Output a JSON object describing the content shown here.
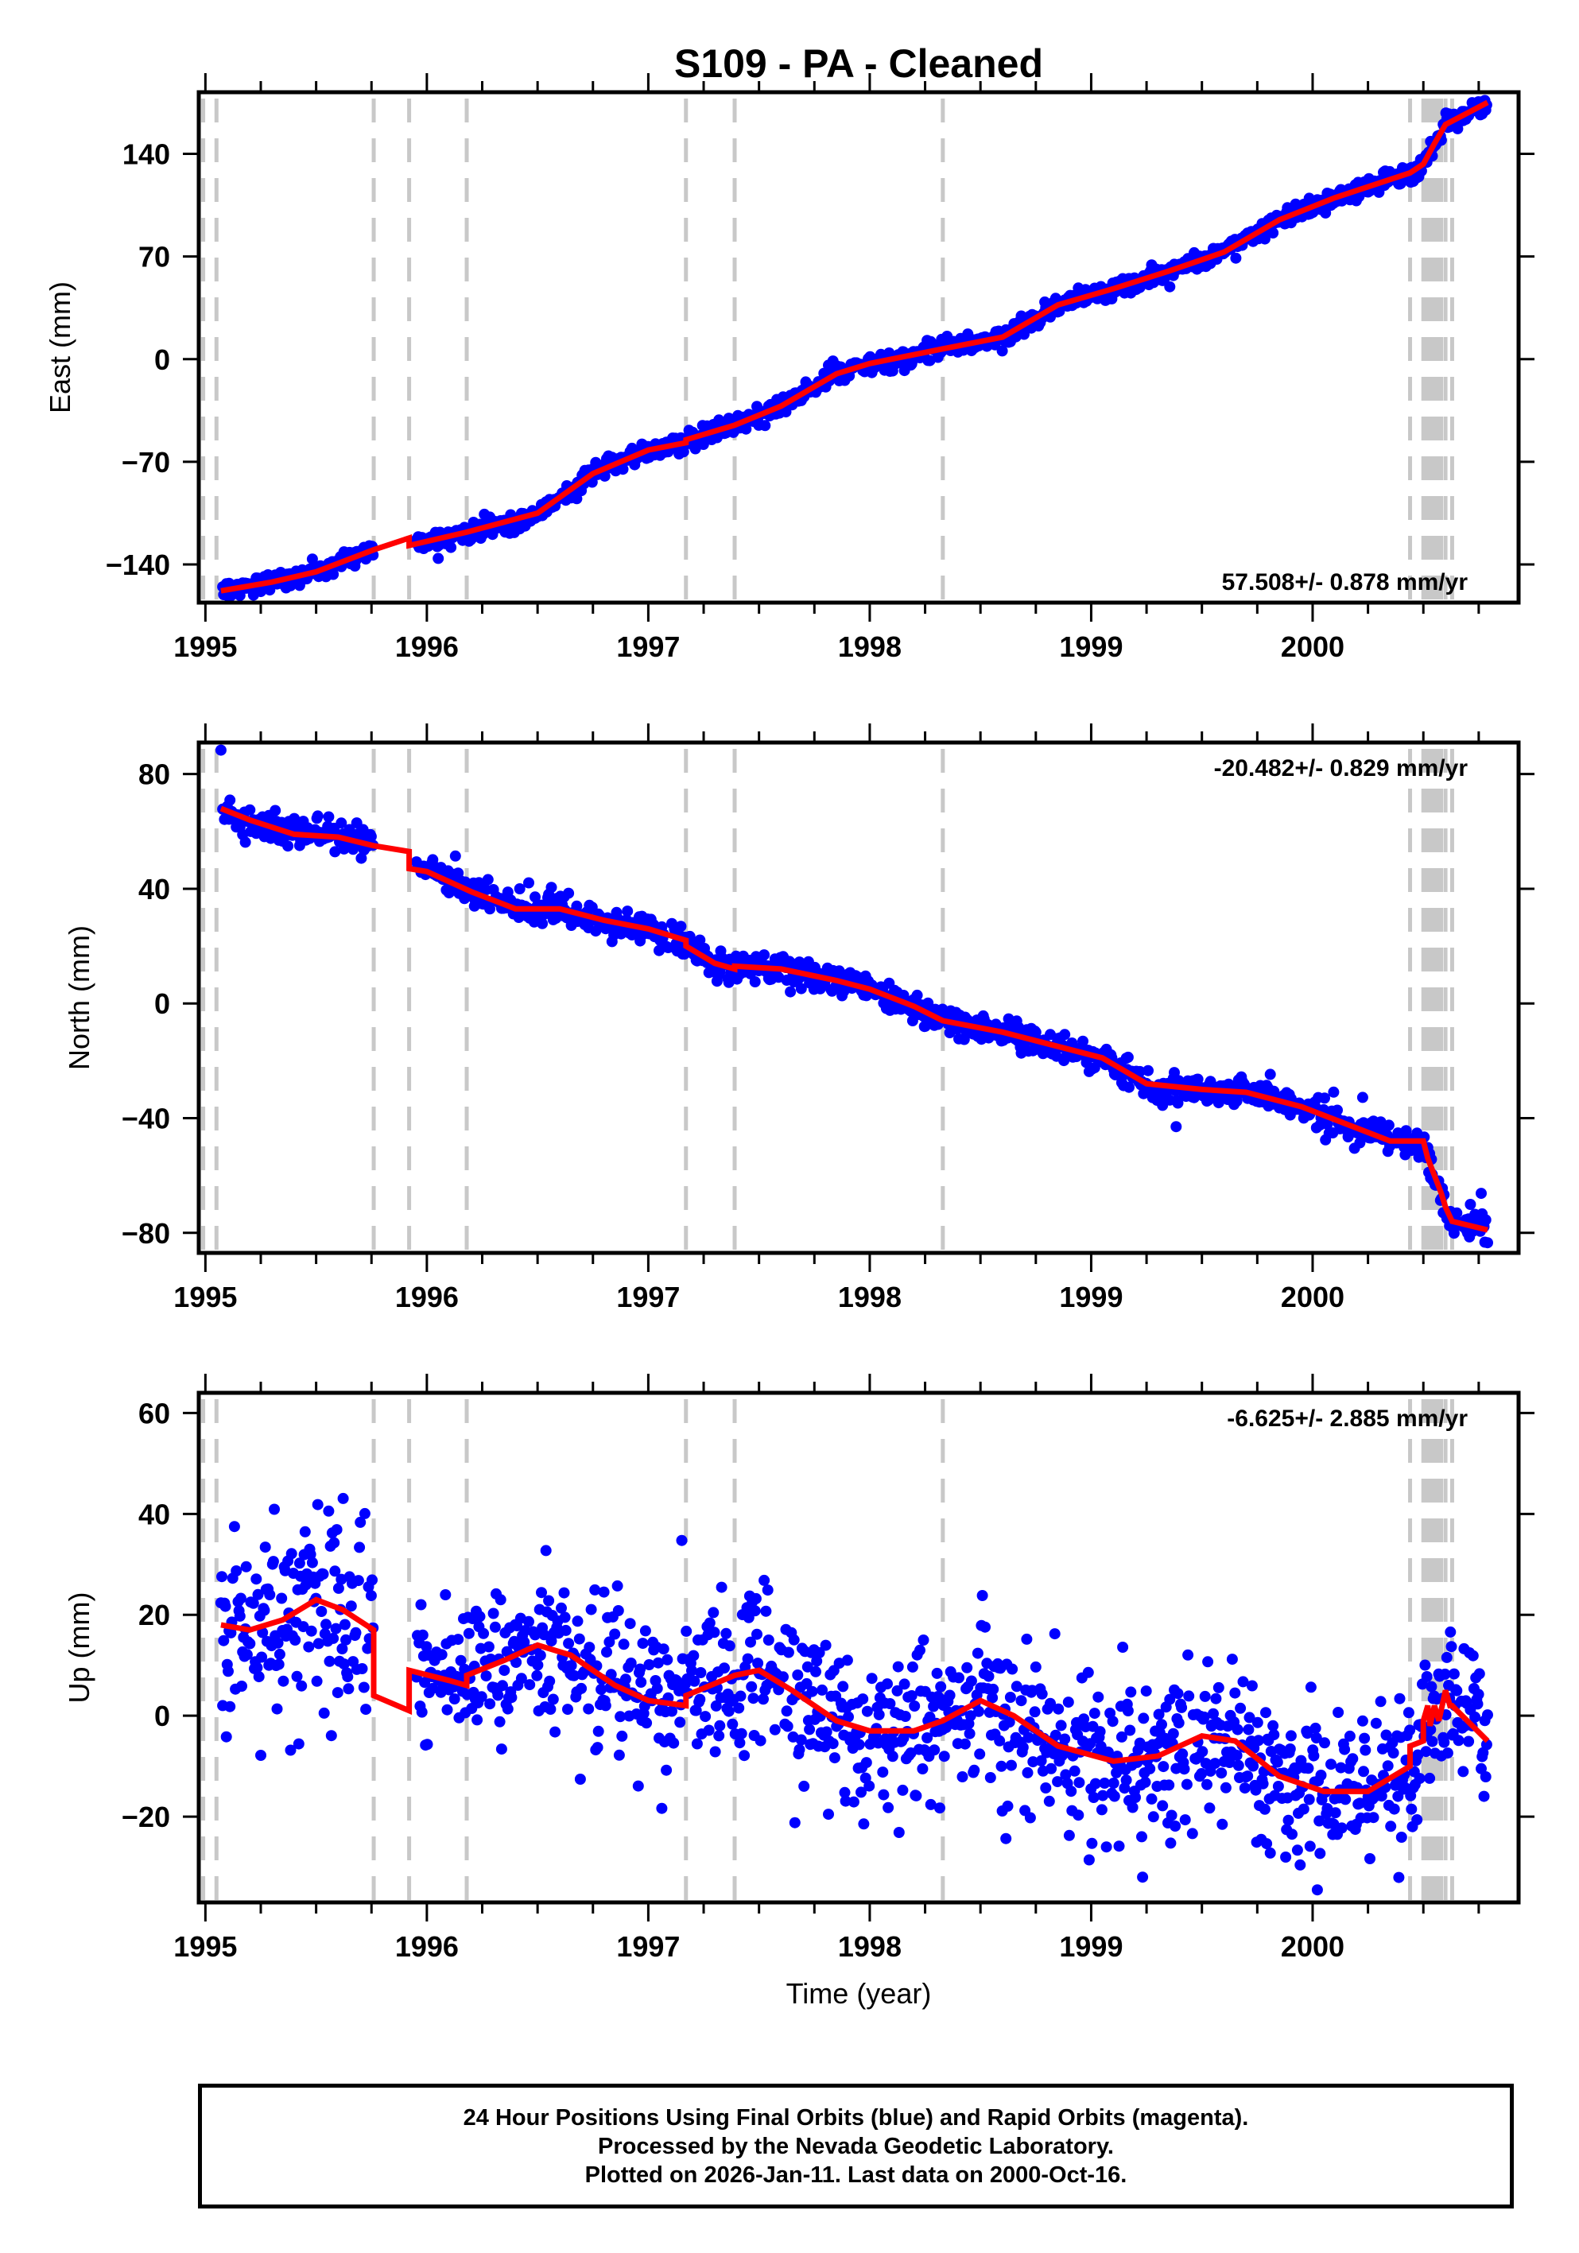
{
  "chart_data": {
    "type": "scatter",
    "title": "S109  - PA - Cleaned",
    "xlabel": "Time (year)",
    "xlim": [
      1994.97,
      2000.93
    ],
    "xticks": [
      1995,
      1996,
      1997,
      1998,
      1999,
      2000
    ],
    "xtick_labels": [
      "1995",
      "1996",
      "1997",
      "1998",
      "1999",
      "2000"
    ],
    "x_minor_step": 0.25,
    "data_start": 1995.07,
    "data_end": 2000.79,
    "colors": {
      "final_orbits": "#0000ff",
      "rapid_orbits": "#ff00ff",
      "model": "#ff0000",
      "steps": "#c8c8c8"
    },
    "step_epochs": [
      1994.99,
      1995.05,
      1995.76,
      1995.92,
      1996.18,
      1997.17,
      1997.39,
      1998.33,
      2000.44,
      2000.5,
      2000.51,
      2000.52,
      2000.53,
      2000.54,
      2000.55,
      2000.56,
      2000.57,
      2000.58,
      2000.6,
      2000.63
    ],
    "panels": [
      {
        "name": "east",
        "ylabel": "East (mm)",
        "ylim": [
          -166,
          182
        ],
        "yticks": [
          -140,
          -70,
          0,
          70,
          140
        ],
        "ytick_labels": [
          "−140",
          "−70",
          "0",
          "70",
          "140"
        ],
        "rate_text": "57.508+/- 0.878 mm/yr",
        "rate_position": "bottom-right",
        "rate_mm_per_yr": 57.508,
        "rate_sigma": 0.878,
        "noise_mm": 3.2,
        "model": [
          [
            1995.07,
            -158
          ],
          [
            1995.3,
            -152
          ],
          [
            1995.5,
            -145
          ],
          [
            1995.76,
            -130
          ],
          [
            1995.92,
            -122
          ],
          [
            1995.92,
            -127
          ],
          [
            1996.18,
            -118
          ],
          [
            1996.5,
            -105
          ],
          [
            1996.75,
            -78
          ],
          [
            1997.0,
            -62
          ],
          [
            1997.17,
            -57
          ],
          [
            1997.17,
            -55
          ],
          [
            1997.39,
            -45
          ],
          [
            1997.6,
            -32
          ],
          [
            1997.85,
            -10
          ],
          [
            1998.0,
            -3
          ],
          [
            1998.33,
            7
          ],
          [
            1998.6,
            15
          ],
          [
            1998.85,
            37
          ],
          [
            1999.1,
            48
          ],
          [
            1999.35,
            60
          ],
          [
            1999.6,
            73
          ],
          [
            1999.85,
            95
          ],
          [
            2000.1,
            110
          ],
          [
            2000.44,
            127
          ],
          [
            2000.5,
            133
          ],
          [
            2000.55,
            147
          ],
          [
            2000.6,
            160
          ],
          [
            2000.79,
            175
          ]
        ],
        "gaps": [
          [
            1995.76,
            1995.95
          ]
        ]
      },
      {
        "name": "north",
        "ylabel": "North (mm)",
        "ylim": [
          -87,
          91
        ],
        "yticks": [
          -80,
          -40,
          0,
          40,
          80
        ],
        "ytick_labels": [
          "−80",
          "−40",
          "0",
          "40",
          "80"
        ],
        "rate_text": "-20.482+/- 0.829 mm/yr",
        "rate_position": "top-right",
        "rate_mm_per_yr": -20.482,
        "rate_sigma": 0.829,
        "noise_mm": 2.6,
        "model": [
          [
            1995.07,
            68
          ],
          [
            1995.2,
            64
          ],
          [
            1995.4,
            59
          ],
          [
            1995.6,
            58
          ],
          [
            1995.76,
            55
          ],
          [
            1995.92,
            53
          ],
          [
            1995.92,
            47
          ],
          [
            1996.0,
            46
          ],
          [
            1996.2,
            39
          ],
          [
            1996.4,
            33
          ],
          [
            1996.6,
            33
          ],
          [
            1996.8,
            29
          ],
          [
            1997.0,
            26
          ],
          [
            1997.17,
            22
          ],
          [
            1997.17,
            20
          ],
          [
            1997.3,
            14
          ],
          [
            1997.39,
            12
          ],
          [
            1997.39,
            13
          ],
          [
            1997.6,
            12
          ],
          [
            1997.85,
            8
          ],
          [
            1998.0,
            5
          ],
          [
            1998.2,
            -1
          ],
          [
            1998.33,
            -6
          ],
          [
            1998.6,
            -10
          ],
          [
            1998.85,
            -15
          ],
          [
            1999.05,
            -19
          ],
          [
            1999.25,
            -28
          ],
          [
            1999.5,
            -30
          ],
          [
            1999.7,
            -31
          ],
          [
            1999.95,
            -36
          ],
          [
            2000.15,
            -42
          ],
          [
            2000.35,
            -48
          ],
          [
            2000.44,
            -48
          ],
          [
            2000.5,
            -48
          ],
          [
            2000.52,
            -54
          ],
          [
            2000.55,
            -60
          ],
          [
            2000.58,
            -66
          ],
          [
            2000.6,
            -71
          ],
          [
            2000.63,
            -76
          ],
          [
            2000.79,
            -79
          ]
        ],
        "gaps": [
          [
            1995.76,
            1995.95
          ]
        ]
      },
      {
        "name": "up",
        "ylabel": "Up (mm)",
        "ylim": [
          -37,
          64
        ],
        "yticks": [
          -20,
          0,
          20,
          40,
          60
        ],
        "ytick_labels": [
          "−20",
          "0",
          "20",
          "40",
          "60"
        ],
        "rate_text": "-6.625+/- 2.885 mm/yr",
        "rate_position": "top-right",
        "rate_mm_per_yr": -6.625,
        "rate_sigma": 2.885,
        "noise_mm": 7.5,
        "model": [
          [
            1995.07,
            18
          ],
          [
            1995.2,
            17
          ],
          [
            1995.35,
            19
          ],
          [
            1995.5,
            23
          ],
          [
            1995.62,
            21
          ],
          [
            1995.76,
            17
          ],
          [
            1995.76,
            4
          ],
          [
            1995.92,
            1
          ],
          [
            1995.92,
            9
          ],
          [
            1996.1,
            7
          ],
          [
            1996.18,
            6
          ],
          [
            1996.18,
            8
          ],
          [
            1996.35,
            11
          ],
          [
            1996.5,
            14
          ],
          [
            1996.65,
            12
          ],
          [
            1996.85,
            6
          ],
          [
            1997.0,
            3
          ],
          [
            1997.17,
            2
          ],
          [
            1997.17,
            4
          ],
          [
            1997.39,
            8
          ],
          [
            1997.5,
            9
          ],
          [
            1997.65,
            5
          ],
          [
            1997.85,
            -1
          ],
          [
            1998.0,
            -3
          ],
          [
            1998.2,
            -3
          ],
          [
            1998.33,
            -1
          ],
          [
            1998.5,
            3
          ],
          [
            1998.65,
            0
          ],
          [
            1998.85,
            -6
          ],
          [
            1999.1,
            -9
          ],
          [
            1999.3,
            -8
          ],
          [
            1999.5,
            -4
          ],
          [
            1999.65,
            -5
          ],
          [
            1999.85,
            -12
          ],
          [
            2000.05,
            -15
          ],
          [
            2000.25,
            -15
          ],
          [
            2000.44,
            -10
          ],
          [
            2000.44,
            -6
          ],
          [
            2000.5,
            -5
          ],
          [
            2000.5,
            -1
          ],
          [
            2000.52,
            2
          ],
          [
            2000.53,
            -2
          ],
          [
            2000.55,
            2
          ],
          [
            2000.57,
            -1
          ],
          [
            2000.6,
            5
          ],
          [
            2000.62,
            2
          ],
          [
            2000.63,
            2
          ],
          [
            2000.79,
            -5
          ]
        ],
        "gaps": [
          [
            1995.76,
            1995.95
          ]
        ]
      }
    ]
  },
  "footer": {
    "line1": "24 Hour Positions Using Final Orbits (blue) and Rapid Orbits (magenta).",
    "line2": "Processed by the Nevada Geodetic Laboratory.",
    "line3": "Plotted on 2026-Jan-11. Last data on 2000-Oct-16."
  }
}
